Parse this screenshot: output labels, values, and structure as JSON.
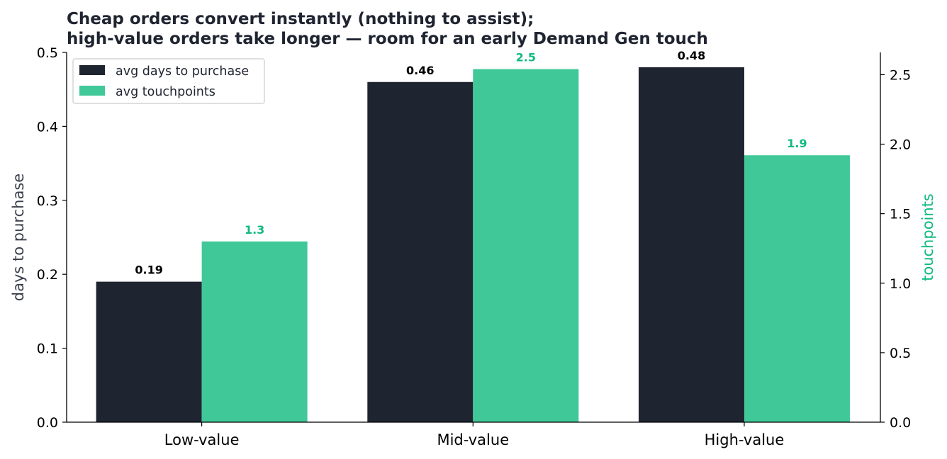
{
  "chart_data": {
    "type": "bar",
    "title_lines": [
      "Cheap orders convert instantly (nothing to assist);",
      "high-value orders take longer — room for an early Demand Gen touch"
    ],
    "categories": [
      "Low-value",
      "Mid-value",
      "High-value"
    ],
    "series": [
      {
        "name": "avg days to purchase",
        "axis": "left",
        "values": [
          0.19,
          0.46,
          0.48
        ],
        "value_labels": [
          "0.19",
          "0.46",
          "0.48"
        ],
        "color": "#1f2431"
      },
      {
        "name": "avg touchpoints",
        "axis": "right",
        "values": [
          1.3,
          2.54,
          1.92
        ],
        "value_labels": [
          "1.3",
          "2.5",
          "1.9"
        ],
        "color": "#40c898"
      }
    ],
    "ylabel": "days to purchase",
    "y2label": "touchpoints",
    "ylim": [
      0,
      0.5
    ],
    "y2lim": [
      0,
      2.66
    ],
    "yticks": [
      "0.0",
      "0.1",
      "0.2",
      "0.3",
      "0.4",
      "0.5"
    ],
    "y2ticks": [
      "0.0",
      "0.5",
      "1.0",
      "1.5",
      "2.0",
      "2.5"
    ],
    "legend_position": "top-left",
    "grid": false,
    "colors": {
      "title": "#1f2431",
      "ylabel": "#3a3f4b",
      "y2label": "#10b981",
      "y2_value_label": "#10b981"
    }
  }
}
